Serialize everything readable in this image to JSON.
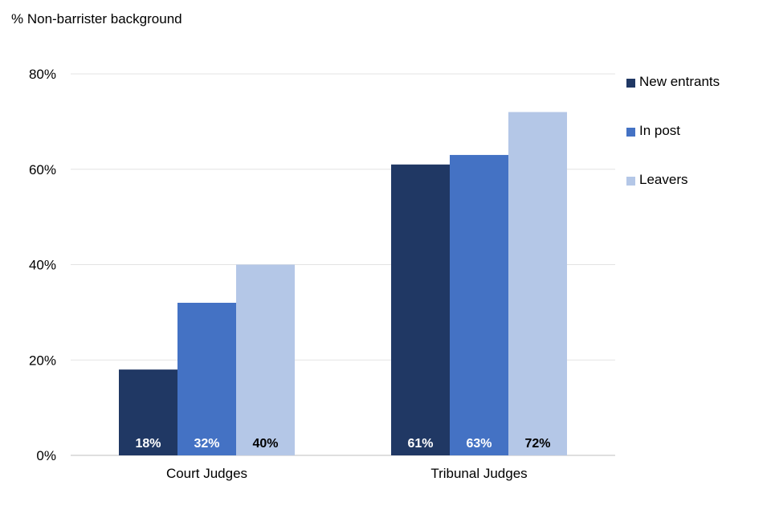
{
  "chart_data": {
    "type": "bar",
    "title": "",
    "ylabel": "% Non-barrister background",
    "xlabel": "",
    "categories": [
      "Court Judges",
      "Tribunal Judges"
    ],
    "series": [
      {
        "name": "New entrants",
        "color": "#203864",
        "values": [
          18,
          61
        ],
        "labels": [
          "18%",
          "61%"
        ],
        "label_color": "#ffffff"
      },
      {
        "name": "In post",
        "color": "#4472c4",
        "values": [
          32,
          63
        ],
        "labels": [
          "32%",
          "63%"
        ],
        "label_color": "#ffffff"
      },
      {
        "name": "Leavers",
        "color": "#b4c7e7",
        "values": [
          40,
          72
        ],
        "labels": [
          "40%",
          "72%"
        ],
        "label_color": "#000000"
      }
    ],
    "ylim": [
      0,
      80
    ],
    "yticks": [
      0,
      20,
      40,
      60,
      80
    ],
    "ytick_labels": [
      "0%",
      "20%",
      "40%",
      "60%",
      "80%"
    ],
    "grid": true,
    "legend_position": "right"
  }
}
